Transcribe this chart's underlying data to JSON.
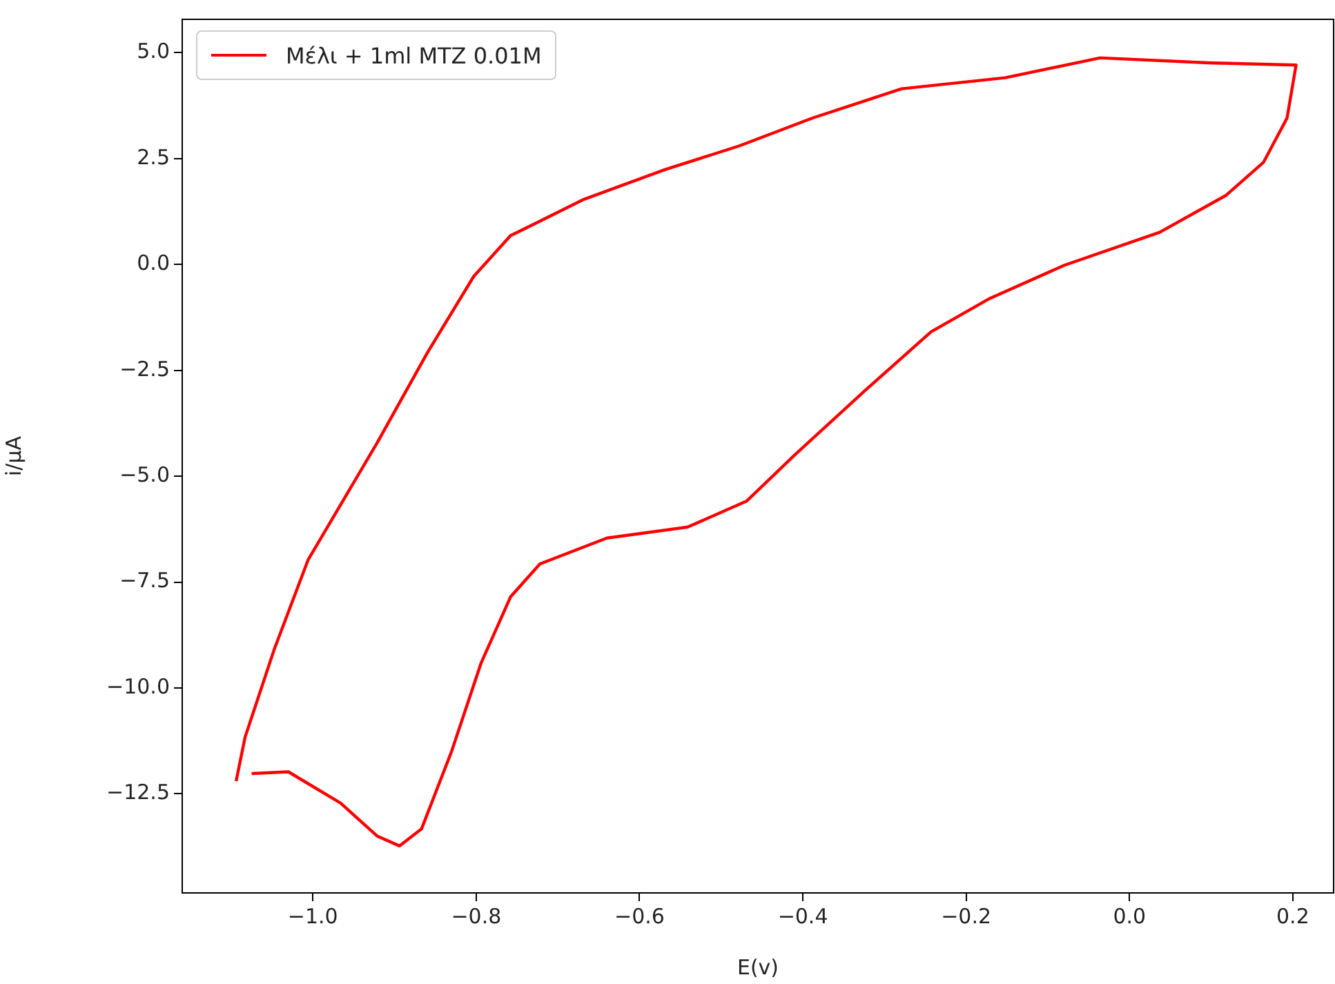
{
  "chart_data": {
    "type": "line",
    "xlabel": "E(v)",
    "ylabel": "i/μA",
    "legend": "top left",
    "grid": false,
    "marker": "none",
    "xlim": [
      -1.16,
      0.25
    ],
    "ylim": [
      -14.84,
      5.79
    ],
    "xticks": [
      {
        "value": -1,
        "label": "−1.0"
      },
      {
        "value": -0.8,
        "label": "−0.8"
      },
      {
        "value": -0.6,
        "label": "−0.6"
      },
      {
        "value": -0.4,
        "label": "−0.4"
      },
      {
        "value": -0.2,
        "label": "−0.2"
      },
      {
        "value": 0,
        "label": "0.0"
      },
      {
        "value": 0.2,
        "label": "0.2"
      }
    ],
    "yticks": [
      {
        "value": -12.5,
        "label": "−12.5"
      },
      {
        "value": -10,
        "label": "−10.0"
      },
      {
        "value": -7.5,
        "label": "−7.5"
      },
      {
        "value": -5,
        "label": "−5.0"
      },
      {
        "value": -2.5,
        "label": "−2.5"
      },
      {
        "value": 0,
        "label": "0.0"
      },
      {
        "value": 2.5,
        "label": "2.5"
      },
      {
        "value": 5,
        "label": "5.0"
      }
    ],
    "x": [
      -1.094,
      -1.083,
      -1.047,
      -1.006,
      -0.921,
      -0.86,
      -0.803,
      -0.758,
      -0.668,
      -0.569,
      -0.478,
      -0.388,
      -0.279,
      -0.152,
      -0.036,
      0.101,
      0.204,
      0.193,
      0.164,
      0.118,
      0.037,
      -0.08,
      -0.171,
      -0.243,
      -0.324,
      -0.41,
      -0.469,
      -0.541,
      -0.64,
      -0.722,
      -0.758,
      -0.794,
      -0.83,
      -0.867,
      -0.894,
      -0.921,
      -0.966,
      -1.03,
      -1.075
    ],
    "series": [
      {
        "name": "Μέλι + 1ml MTZ 0.01M",
        "color": "#ff0000",
        "values": [
          -12.2,
          -11.16,
          -9.07,
          -6.98,
          -4.2,
          -2.09,
          -0.28,
          0.68,
          1.54,
          2.24,
          2.8,
          3.46,
          4.15,
          4.41,
          4.88,
          4.76,
          4.71,
          3.46,
          2.41,
          1.63,
          0.76,
          -0.02,
          -0.8,
          -1.59,
          -2.98,
          -4.5,
          -5.59,
          -6.2,
          -6.46,
          -7.07,
          -7.85,
          -9.41,
          -11.49,
          -13.33,
          -13.73,
          -13.5,
          -12.72,
          -11.98,
          -12.02
        ]
      }
    ]
  }
}
